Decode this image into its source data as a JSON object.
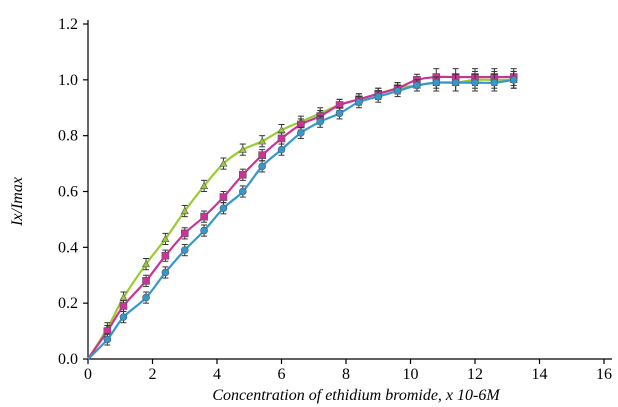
{
  "chart_data": {
    "type": "line",
    "xlabel": "Concentration of ethidium bromide, x 10-6M",
    "ylabel": "Ix/Imax",
    "xlim": [
      0,
      16
    ],
    "ylim": [
      0,
      1.2
    ],
    "xticks": [
      "0",
      "2",
      "4",
      "6",
      "8",
      "10",
      "12",
      "14",
      "16"
    ],
    "yticks": [
      "0.0",
      "0.2",
      "0.4",
      "0.6",
      "0.8",
      "1.0",
      "1.2"
    ],
    "grid": false,
    "legend": "none",
    "x": [
      0.6,
      1.1,
      1.8,
      2.4,
      3.0,
      3.6,
      4.2,
      4.8,
      5.4,
      6.0,
      6.6,
      7.2,
      7.8,
      8.4,
      9.0,
      9.6,
      10.2,
      10.8,
      11.4,
      12.0,
      12.6,
      13.2
    ],
    "series": [
      {
        "color": "#99cc33",
        "marker": "triangle",
        "values": [
          0.11,
          0.22,
          0.34,
          0.43,
          0.53,
          0.62,
          0.7,
          0.75,
          0.78,
          0.82,
          0.85,
          0.88,
          0.91,
          0.93,
          0.95,
          0.97,
          0.98,
          0.99,
          0.99,
          1.0,
          1.0,
          1.0
        ],
        "errors": [
          0.02,
          0.02,
          0.02,
          0.02,
          0.02,
          0.02,
          0.02,
          0.02,
          0.02,
          0.02,
          0.02,
          0.02,
          0.02,
          0.02,
          0.02,
          0.02,
          0.02,
          0.03,
          0.03,
          0.03,
          0.03,
          0.03
        ]
      },
      {
        "color": "#cc3399",
        "marker": "square",
        "values": [
          0.1,
          0.19,
          0.28,
          0.37,
          0.45,
          0.51,
          0.58,
          0.66,
          0.73,
          0.79,
          0.84,
          0.87,
          0.91,
          0.93,
          0.95,
          0.97,
          1.0,
          1.01,
          1.01,
          1.01,
          1.01,
          1.01
        ],
        "errors": [
          0.02,
          0.02,
          0.02,
          0.02,
          0.02,
          0.02,
          0.02,
          0.02,
          0.02,
          0.02,
          0.02,
          0.02,
          0.02,
          0.02,
          0.02,
          0.02,
          0.02,
          0.03,
          0.03,
          0.03,
          0.03,
          0.03
        ]
      },
      {
        "color": "#3399cc",
        "marker": "circle",
        "values": [
          0.07,
          0.15,
          0.22,
          0.31,
          0.39,
          0.46,
          0.54,
          0.6,
          0.69,
          0.75,
          0.81,
          0.85,
          0.88,
          0.92,
          0.94,
          0.96,
          0.98,
          0.99,
          0.99,
          0.99,
          0.99,
          1.0
        ],
        "errors": [
          0.02,
          0.02,
          0.02,
          0.02,
          0.02,
          0.02,
          0.02,
          0.02,
          0.02,
          0.02,
          0.02,
          0.02,
          0.02,
          0.02,
          0.02,
          0.02,
          0.02,
          0.02,
          0.03,
          0.03,
          0.03,
          0.03
        ]
      }
    ]
  }
}
